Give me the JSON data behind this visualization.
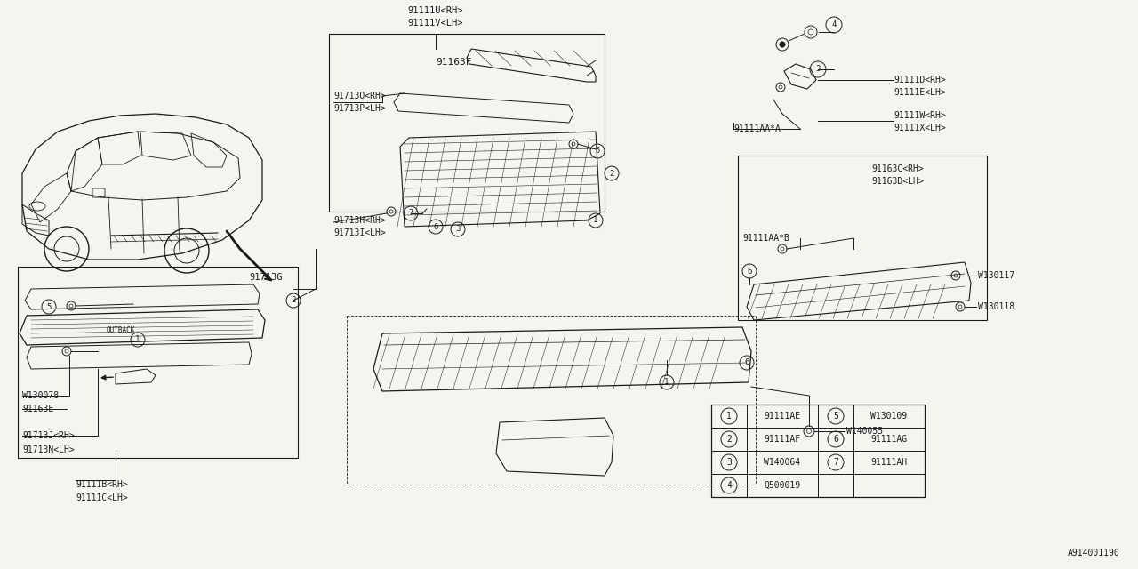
{
  "bg_color": "#f5f5f0",
  "line_color": "#1a1a1a",
  "font_color": "#1a1a1a",
  "diagram_code": "A914001190",
  "legend": [
    [
      "1",
      "91111AE",
      "5",
      "W130109"
    ],
    [
      "2",
      "91111AF",
      "6",
      "91111AG"
    ],
    [
      "3",
      "W140064",
      "7",
      "91111AH"
    ],
    [
      "4",
      "Q500019",
      "",
      ""
    ]
  ],
  "top_center_label1": "91111U<RH>",
  "top_center_label2": "91111V<LH>",
  "label_91163F": "91163F",
  "label_91713O": "91713O<RH>",
  "label_91713P": "91713P<LH>",
  "label_91713G": "91713G",
  "label_91713H": "91713H<RH>",
  "label_91713I": "91713I<LH>",
  "label_91111D": "91111D<RH>",
  "label_91111E": "91111E<LH>",
  "label_91111AA_A": "91111AA*A",
  "label_91111W": "91111W<RH>",
  "label_91111X": "91111X<LH>",
  "label_91163C": "91163C<RH>",
  "label_91163D": "91163D<LH>",
  "label_91111AA_B": "91111AA*B",
  "label_W130117": "W130117",
  "label_W130118": "W130118",
  "label_W140055": "W140055",
  "label_W130078": "W130078",
  "label_91163E": "91163E",
  "label_91713J": "91713J<RH>",
  "label_91713N": "91713N<LH>",
  "label_91111B": "91111B<RH>",
  "label_91111C": "91111C<LH>"
}
